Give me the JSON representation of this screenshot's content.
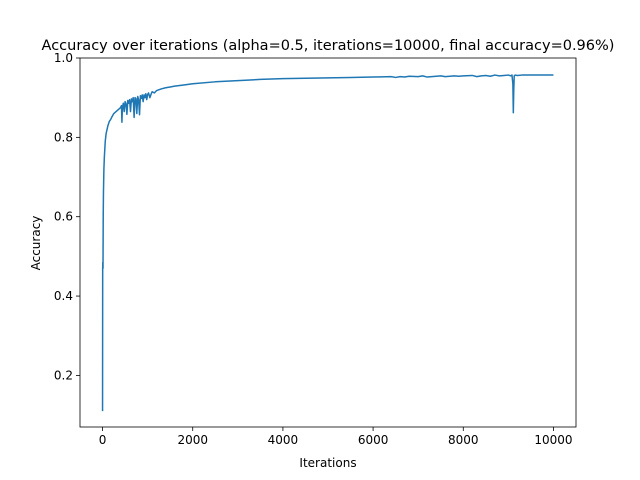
{
  "chart_data": {
    "type": "line",
    "title": "Accuracy over iterations (alpha=0.5, iterations=10000, final accuracy=0.96%)",
    "xlabel": "Iterations",
    "ylabel": "Accuracy",
    "xlim": [
      -500,
      10500
    ],
    "ylim": [
      0.07,
      1.0
    ],
    "xticks": [
      0,
      2000,
      4000,
      6000,
      8000,
      10000
    ],
    "xtick_labels": [
      "0",
      "2000",
      "4000",
      "6000",
      "8000",
      "10000"
    ],
    "yticks": [
      0.2,
      0.4,
      0.6,
      0.8,
      1.0
    ],
    "ytick_labels": [
      "0.2",
      "0.4",
      "0.6",
      "0.8",
      "1.0"
    ],
    "grid": false,
    "legend": "none",
    "color": "#1f77b4",
    "series": [
      {
        "x": [
          0,
          3,
          6,
          10,
          15,
          20,
          30,
          40,
          50,
          60,
          70,
          80,
          100,
          120,
          150,
          180,
          200,
          250,
          300,
          350,
          400,
          420,
          430,
          440,
          460,
          480,
          500,
          520,
          540,
          560,
          580,
          600,
          620,
          640,
          660,
          680,
          700,
          720,
          740,
          760,
          780,
          800,
          820,
          840,
          860,
          880,
          900,
          920,
          940,
          960,
          980,
          1000,
          1020,
          1050,
          1080,
          1100,
          1150,
          1200,
          1300,
          1400,
          1500,
          1600,
          1800,
          2000,
          2500,
          3000,
          3500,
          4000,
          4500,
          5000,
          5500,
          6000,
          6400,
          6500,
          6600,
          6700,
          6800,
          7000,
          7100,
          7200,
          7400,
          7500,
          7600,
          7800,
          7900,
          8000,
          8200,
          8300,
          8400,
          8500,
          8600,
          8700,
          8800,
          8900,
          9000,
          9050,
          9080,
          9100,
          9110,
          9120,
          9130,
          9150,
          9200,
          9300,
          9500,
          9700,
          10000
        ],
        "y": [
          0.11,
          0.47,
          0.485,
          0.47,
          0.6,
          0.66,
          0.72,
          0.75,
          0.77,
          0.79,
          0.8,
          0.81,
          0.82,
          0.83,
          0.84,
          0.845,
          0.85,
          0.86,
          0.865,
          0.87,
          0.875,
          0.88,
          0.838,
          0.875,
          0.886,
          0.865,
          0.89,
          0.885,
          0.858,
          0.893,
          0.886,
          0.895,
          0.865,
          0.897,
          0.89,
          0.9,
          0.85,
          0.9,
          0.898,
          0.86,
          0.903,
          0.895,
          0.857,
          0.905,
          0.898,
          0.907,
          0.89,
          0.907,
          0.9,
          0.91,
          0.895,
          0.908,
          0.912,
          0.9,
          0.91,
          0.915,
          0.912,
          0.918,
          0.922,
          0.925,
          0.927,
          0.929,
          0.932,
          0.935,
          0.94,
          0.943,
          0.946,
          0.948,
          0.949,
          0.95,
          0.951,
          0.952,
          0.953,
          0.951,
          0.953,
          0.952,
          0.954,
          0.953,
          0.955,
          0.952,
          0.954,
          0.955,
          0.953,
          0.955,
          0.954,
          0.955,
          0.956,
          0.953,
          0.955,
          0.956,
          0.954,
          0.957,
          0.955,
          0.956,
          0.957,
          0.955,
          0.957,
          0.935,
          0.862,
          0.92,
          0.955,
          0.957,
          0.956,
          0.957,
          0.957,
          0.957,
          0.957
        ]
      }
    ]
  }
}
